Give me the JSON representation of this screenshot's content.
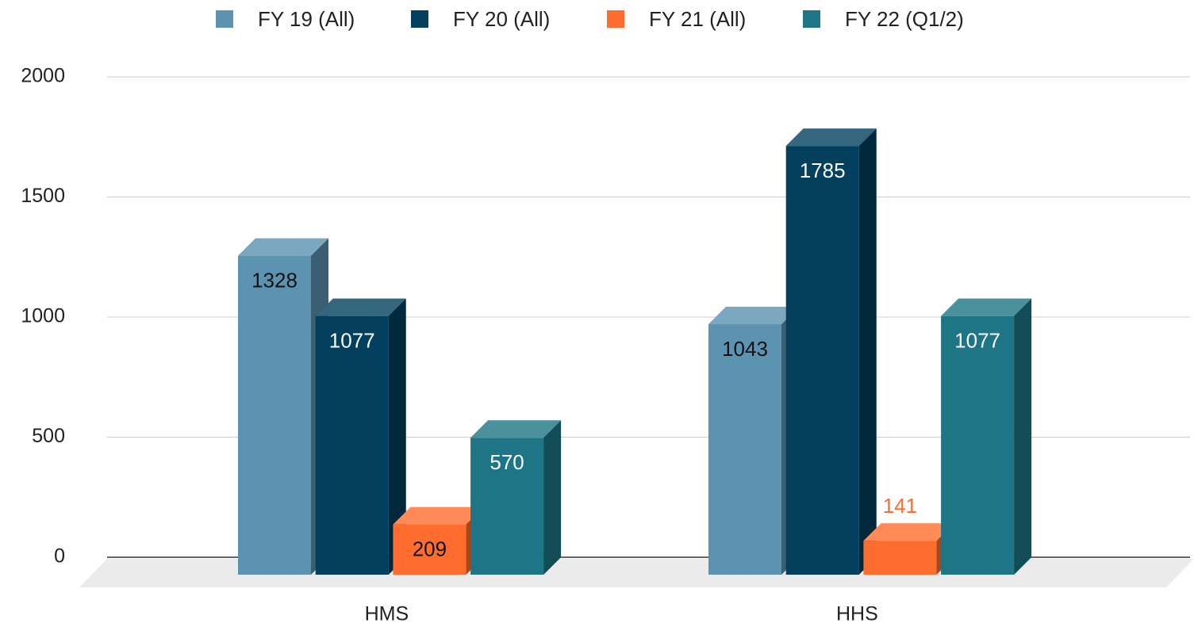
{
  "chart_data": {
    "type": "bar3d",
    "categories": [
      "HMS",
      "HHS"
    ],
    "series": [
      {
        "name": "FY 19 (All)",
        "color": "#5b93b0",
        "label_color": "#111111",
        "values": [
          1328,
          1043
        ]
      },
      {
        "name": "FY 20 (All)",
        "color": "#02405e",
        "label_color": "#ffffff",
        "values": [
          1077,
          1785
        ]
      },
      {
        "name": "FY 21 (All)",
        "color": "#ff6d2e",
        "label_color": "#111111",
        "values": [
          209,
          141
        ]
      },
      {
        "name": "FY 22 (Q1/2)",
        "color": "#1d7585",
        "label_color": "#ffffff",
        "values": [
          570,
          1077
        ]
      }
    ],
    "ylim": [
      0,
      2000
    ],
    "yticks": [
      0,
      500,
      1000,
      1500,
      2000
    ],
    "grid": true,
    "legend": "top"
  }
}
